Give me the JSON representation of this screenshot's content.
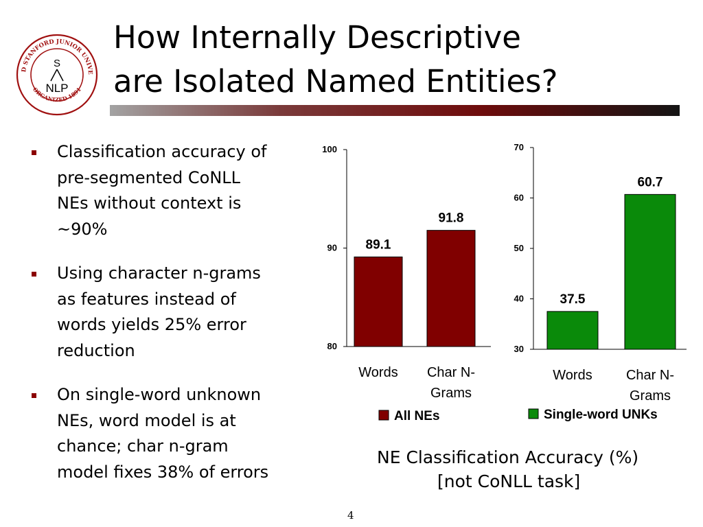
{
  "slide": {
    "title_lines": [
      "How Internally Descriptive",
      "are Isolated Named Entities?"
    ],
    "bullets": [
      [
        "Classification accuracy of",
        "pre-segmented CoNLL",
        "NEs without context is",
        "~90%"
      ],
      [
        "Using character n-grams",
        "as features instead of",
        "words yields 25% error",
        "reduction"
      ],
      [
        "On single-word unknown",
        "NEs, word model is at",
        "chance; char n-gram",
        "model fixes 38% of errors"
      ]
    ],
    "caption_lines": [
      "NE Classification Accuracy (%)",
      "[not CoNLL task]"
    ],
    "page_number": "4"
  },
  "logo": {
    "ring_text": "LELAND STANFORD JUNIOR UNIVERSITY",
    "bottom_text": "ORGANIZED 1891",
    "letter": "S",
    "label": "NLP",
    "color": "#a01010"
  },
  "chart_data": [
    {
      "type": "bar",
      "categories": [
        [
          "Words"
        ],
        [
          "Char N-",
          "Grams"
        ]
      ],
      "values": [
        89.1,
        91.8
      ],
      "value_labels": [
        "89.1",
        "91.8"
      ],
      "ylim": [
        80,
        100
      ],
      "yticks": [
        80,
        90,
        100
      ],
      "legend": "All NEs",
      "legend_position": "bottom",
      "color": "#800000",
      "grid": false
    },
    {
      "type": "bar",
      "categories": [
        [
          "Words"
        ],
        [
          "Char N-",
          "Grams"
        ]
      ],
      "values": [
        37.5,
        60.7
      ],
      "value_labels": [
        "37.5",
        "60.7"
      ],
      "ylim": [
        30,
        70
      ],
      "yticks": [
        30,
        40,
        50,
        60,
        70
      ],
      "legend": "Single-word UNKs",
      "legend_position": "bottom",
      "color": "#0a8a0a",
      "grid": false
    }
  ]
}
